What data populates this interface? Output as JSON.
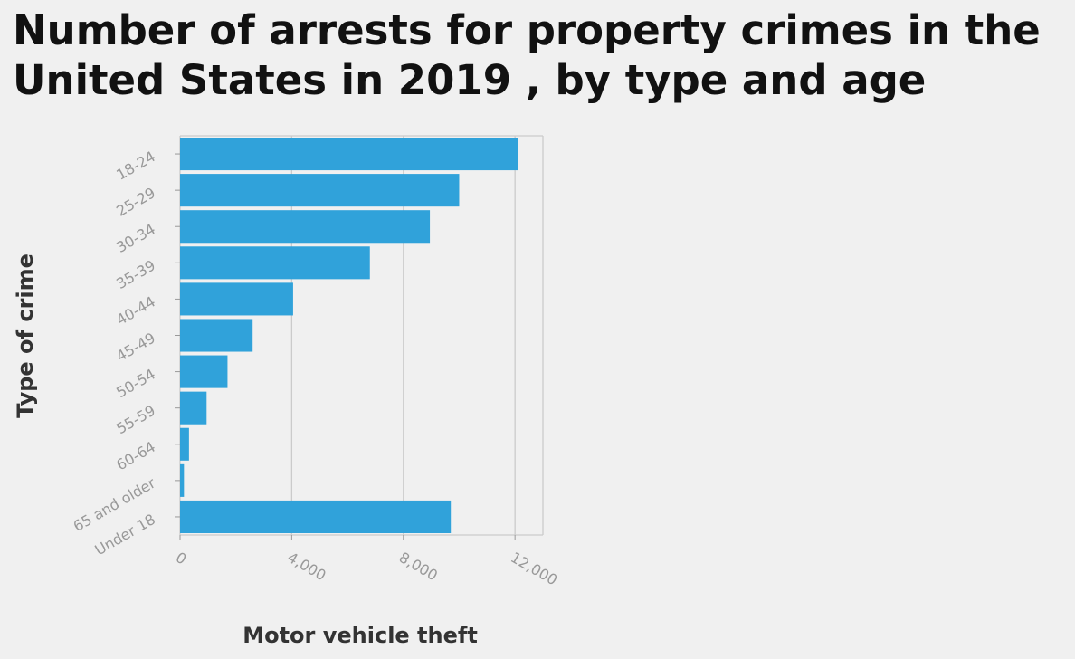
{
  "chart_data": {
    "type": "bar",
    "orientation": "horizontal",
    "title": "Number of arrests for property crimes in the United States in 2019 , by type and age",
    "xlabel": "Motor vehicle theft",
    "ylabel": "Type of crime",
    "categories": [
      "18-24",
      "25-29",
      "30-34",
      "35-39",
      "40-44",
      "45-49",
      "50-54",
      "55-59",
      "60-64",
      "65 and older",
      "Under 18"
    ],
    "values": [
      12100,
      10000,
      8950,
      6800,
      4050,
      2600,
      1700,
      950,
      320,
      140,
      9700
    ],
    "xlim": [
      0,
      13000
    ],
    "xticks": [
      0,
      4000,
      8000,
      12000
    ],
    "xtick_labels": [
      "0",
      "4,000",
      "8,000",
      "12,000"
    ],
    "grid": true,
    "bar_color": "#30a2da"
  }
}
